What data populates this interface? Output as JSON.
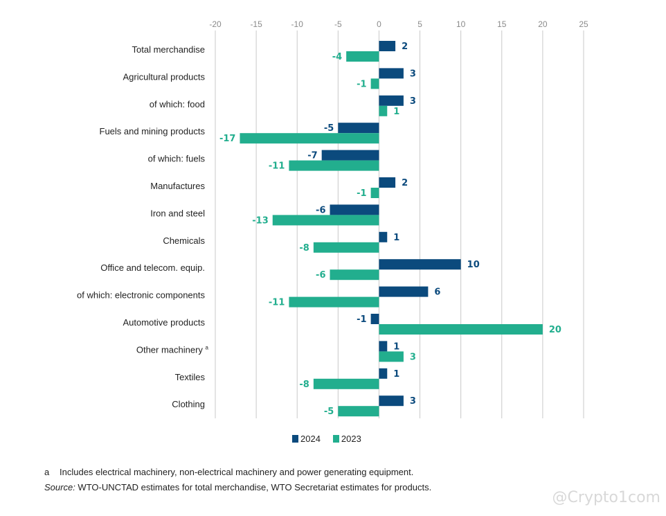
{
  "chart_data": {
    "type": "bar",
    "orientation": "horizontal",
    "title": "",
    "xlabel": "",
    "ylabel": "",
    "xlim": [
      -20,
      25
    ],
    "x_ticks": [
      -20,
      -15,
      -10,
      -5,
      0,
      5,
      10,
      15,
      20,
      25
    ],
    "grid": true,
    "legend_position": "bottom-center",
    "categories": [
      "Total merchandise",
      "Agricultural products",
      "of which: food",
      "Fuels and mining products",
      "of which: fuels",
      "Manufactures",
      "Iron and steel",
      "Chemicals",
      "Office and telecom. equip.",
      "of which: electronic components",
      "Automotive products",
      "Other machinery",
      "Textiles",
      "Clothing"
    ],
    "category_superscripts": [
      "",
      "",
      "",
      "",
      "",
      "",
      "",
      "",
      "",
      "",
      "",
      "a",
      "",
      ""
    ],
    "series": [
      {
        "name": "2024",
        "color": "#0b4a7d",
        "values": [
          2,
          3,
          3,
          -5,
          -7,
          2,
          -6,
          1,
          10,
          6,
          -1,
          1,
          1,
          3
        ],
        "labels": [
          "2",
          "3",
          "3",
          "-5",
          "-7",
          "2",
          "-6",
          "1",
          "10",
          "6",
          "-1",
          "1",
          "1",
          "3"
        ]
      },
      {
        "name": "2023",
        "color": "#22ae8e",
        "values": [
          -4,
          -1,
          1,
          -17,
          -11,
          -1,
          -13,
          -8,
          -6,
          -11,
          20,
          3,
          -8,
          -5
        ],
        "labels": [
          "-4",
          "-1",
          "1",
          "-17",
          "-11",
          "-1",
          "-13",
          "-8",
          "-6",
          "-11",
          "20",
          "3",
          "-8",
          "-5"
        ]
      }
    ]
  },
  "footnotes": {
    "a_marker": "a",
    "a_text": "Includes electrical machinery, non-electrical machinery and power generating equipment.",
    "source_label": "Source:",
    "source_text": " WTO-UNCTAD estimates for total merchandise, WTO Secretariat estimates for products."
  },
  "watermark": "@Crypto1com"
}
